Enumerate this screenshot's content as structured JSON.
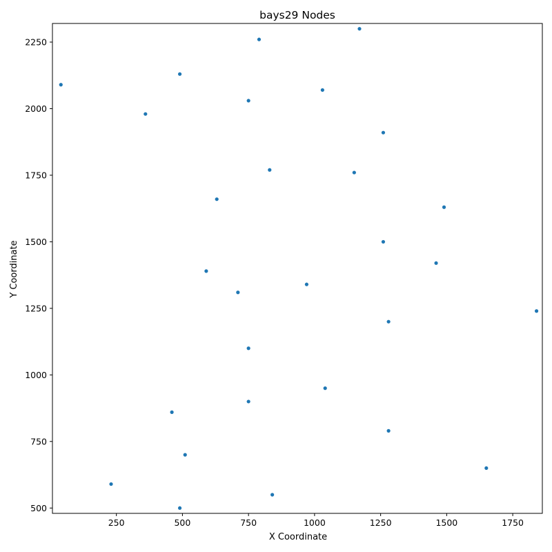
{
  "chart_data": {
    "type": "scatter",
    "title": "bays29 Nodes",
    "xlabel": "X Coordinate",
    "ylabel": "Y Coordinate",
    "xlim": [
      8,
      1862
    ],
    "ylim": [
      480,
      2320
    ],
    "xticks": [
      250,
      500,
      750,
      1000,
      1250,
      1500,
      1750
    ],
    "yticks": [
      500,
      750,
      1000,
      1250,
      1500,
      1750,
      2000,
      2250
    ],
    "grid": false,
    "legend": "none",
    "marker_color": "#1f77b4",
    "points": [
      {
        "x": 1150,
        "y": 1760
      },
      {
        "x": 630,
        "y": 1660
      },
      {
        "x": 40,
        "y": 2090
      },
      {
        "x": 750,
        "y": 1100
      },
      {
        "x": 750,
        "y": 2030
      },
      {
        "x": 1030,
        "y": 2070
      },
      {
        "x": 1650,
        "y": 650
      },
      {
        "x": 1490,
        "y": 1630
      },
      {
        "x": 790,
        "y": 2260
      },
      {
        "x": 710,
        "y": 1310
      },
      {
        "x": 840,
        "y": 550
      },
      {
        "x": 1170,
        "y": 2300
      },
      {
        "x": 970,
        "y": 1340
      },
      {
        "x": 510,
        "y": 700
      },
      {
        "x": 750,
        "y": 900
      },
      {
        "x": 1280,
        "y": 1200
      },
      {
        "x": 230,
        "y": 590
      },
      {
        "x": 460,
        "y": 860
      },
      {
        "x": 1040,
        "y": 950
      },
      {
        "x": 590,
        "y": 1390
      },
      {
        "x": 830,
        "y": 1770
      },
      {
        "x": 490,
        "y": 500
      },
      {
        "x": 1840,
        "y": 1240
      },
      {
        "x": 1260,
        "y": 1500
      },
      {
        "x": 1280,
        "y": 790
      },
      {
        "x": 490,
        "y": 2130
      },
      {
        "x": 1460,
        "y": 1420
      },
      {
        "x": 1260,
        "y": 1910
      },
      {
        "x": 360,
        "y": 1980
      }
    ]
  }
}
